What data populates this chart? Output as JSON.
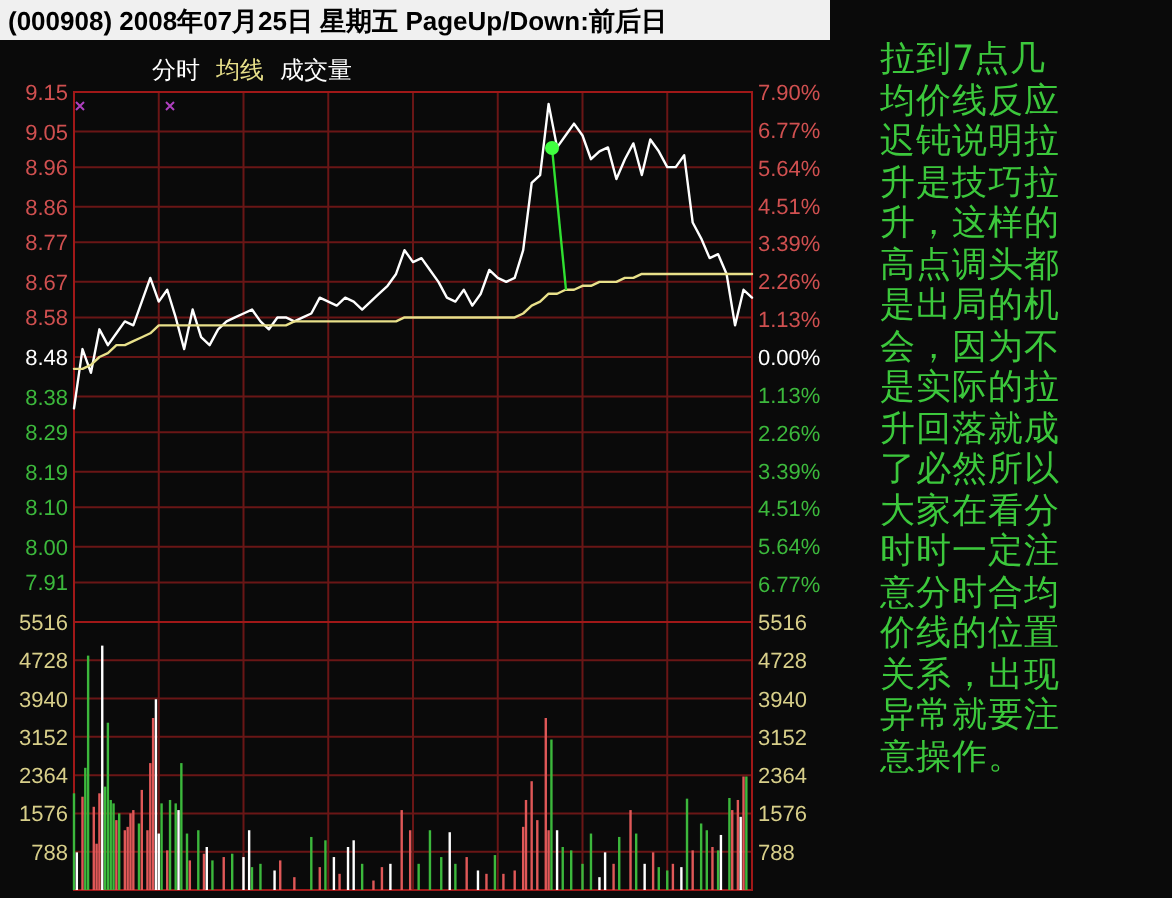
{
  "chart_data": [
    {
      "type": "line",
      "title": "(000908) 2008年07月25日 星期五 PageUp/Down:前后日",
      "tick_labels": "y",
      "categories": [
        null,
        null,
        null,
        null,
        null,
        null,
        null,
        null,
        null,
        null,
        null,
        null,
        null,
        null,
        null,
        null,
        null,
        null,
        null,
        null,
        null,
        null,
        null,
        null,
        null,
        null,
        null,
        null,
        null,
        null,
        null,
        null,
        null,
        null,
        null,
        null,
        null,
        null,
        null,
        null,
        null,
        null,
        null,
        null,
        null,
        null,
        null,
        null,
        null,
        null,
        null,
        null,
        null,
        null,
        null,
        null,
        null,
        null,
        null,
        null,
        null,
        null,
        null,
        null,
        null,
        null,
        null,
        null,
        null,
        null,
        null,
        null,
        null,
        null,
        null,
        null,
        null,
        null,
        null,
        null,
        null
      ],
      "ylim": [
        7.81,
        9.15
      ],
      "yticks": [
        9.15,
        9.05,
        8.96,
        8.86,
        8.77,
        8.67,
        8.58,
        8.48,
        8.38,
        8.29,
        8.19,
        {
          "value": 8.1,
          "label": "8.10"
        },
        {
          "value": 8.0,
          "label": "8.00"
        },
        7.91
      ],
      "y2lim": [
        -7.9,
        7.9
      ],
      "y2ticks": [
        {
          "value": 7.9,
          "label": "7.90%"
        },
        {
          "value": 6.77,
          "label": "6.77%"
        },
        {
          "value": 5.64,
          "label": "5.64%"
        },
        {
          "value": 4.51,
          "label": "4.51%"
        },
        {
          "value": 3.39,
          "label": "3.39%"
        },
        {
          "value": 2.26,
          "label": "2.26%"
        },
        {
          "value": 1.13,
          "label": "1.13%"
        },
        {
          "value": 0,
          "label": "0.00%"
        },
        {
          "value": -1.13,
          "label": "1.13%"
        },
        {
          "value": -2.26,
          "label": "2.26%"
        },
        {
          "value": -3.39,
          "label": "3.39%"
        },
        {
          "value": -4.51,
          "label": "4.51%"
        },
        {
          "value": -5.64,
          "label": "5.64%"
        },
        {
          "value": -6.77,
          "label": "6.77%"
        }
      ],
      "grid": true,
      "annotations": [
        "拉到7点几均价线反应迟钝说明拉升是技巧拉升，这样的高点调头都是出局的机会，因为不是实际的拉升回落就成了必然所以大家在看分时时一定注意分时合均价线的位置关系，出现异常就要注意操作。"
      ],
      "series": [
        {
          "name": "分时",
          "color": "#ffffff",
          "values": [
            8.35,
            8.5,
            8.44,
            8.55,
            8.51,
            8.54,
            8.57,
            8.56,
            8.62,
            8.68,
            8.62,
            8.65,
            8.58,
            8.5,
            8.6,
            8.53,
            8.51,
            8.55,
            8.57,
            8.58,
            8.59,
            8.6,
            8.57,
            8.55,
            8.58,
            8.58,
            8.57,
            8.58,
            8.59,
            8.63,
            8.62,
            8.61,
            8.63,
            8.62,
            8.6,
            8.62,
            8.64,
            8.66,
            8.69,
            8.75,
            8.72,
            8.73,
            8.7,
            8.67,
            8.63,
            8.62,
            8.65,
            8.61,
            8.64,
            8.7,
            8.68,
            8.67,
            8.68,
            8.75,
            8.92,
            8.94,
            9.12,
            9.01,
            9.04,
            9.07,
            9.04,
            8.98,
            9.0,
            9.01,
            8.93,
            8.98,
            9.02,
            8.94,
            9.03,
            9.0,
            8.96,
            8.96,
            8.99,
            8.82,
            8.78,
            8.73,
            8.74,
            8.69,
            8.56,
            8.65,
            8.63
          ]
        },
        {
          "name": "均线",
          "color": "#e8e08a",
          "values": [
            8.45,
            8.45,
            8.46,
            8.48,
            8.49,
            8.51,
            8.51,
            8.52,
            8.53,
            8.54,
            8.56,
            8.56,
            8.56,
            8.56,
            8.56,
            8.56,
            8.56,
            8.56,
            8.56,
            8.56,
            8.56,
            8.56,
            8.56,
            8.56,
            8.56,
            8.56,
            8.57,
            8.57,
            8.57,
            8.57,
            8.57,
            8.57,
            8.57,
            8.57,
            8.57,
            8.57,
            8.57,
            8.57,
            8.57,
            8.58,
            8.58,
            8.58,
            8.58,
            8.58,
            8.58,
            8.58,
            8.58,
            8.58,
            8.58,
            8.58,
            8.58,
            8.58,
            8.58,
            8.59,
            8.61,
            8.62,
            8.64,
            8.64,
            8.65,
            8.65,
            8.66,
            8.66,
            8.67,
            8.67,
            8.67,
            8.68,
            8.68,
            8.69,
            8.69,
            8.69,
            8.69,
            8.69,
            8.69,
            8.69,
            8.69,
            8.69,
            8.69,
            8.69,
            8.69,
            8.69,
            8.69
          ]
        }
      ]
    },
    {
      "type": "bar",
      "tick_labels": "y",
      "categories": [
        null,
        null,
        null,
        null,
        null,
        null,
        null,
        null,
        null,
        null,
        null,
        null,
        null,
        null,
        null,
        null,
        null,
        null,
        null,
        null,
        null,
        null,
        null,
        null,
        null,
        null,
        null,
        null,
        null,
        null,
        null,
        null,
        null,
        null,
        null,
        null,
        null,
        null,
        null,
        null,
        null,
        null,
        null,
        null,
        null,
        null,
        null,
        null,
        null,
        null,
        null,
        null,
        null,
        null,
        null,
        null,
        null,
        null,
        null,
        null,
        null,
        null,
        null,
        null,
        null,
        null,
        null,
        null,
        null,
        null,
        null,
        null,
        null,
        null,
        null,
        null,
        null,
        null,
        null,
        null,
        null,
        null,
        null,
        null,
        null,
        null,
        null,
        null,
        null,
        null,
        null,
        null,
        null,
        null,
        null,
        null,
        null,
        null,
        null,
        null,
        null,
        null,
        null,
        null,
        null,
        null,
        null,
        null,
        null,
        null,
        null,
        null,
        null,
        null,
        null,
        null,
        null,
        null,
        null,
        null,
        null,
        null,
        null,
        null,
        null,
        null,
        null,
        null,
        null,
        null,
        null,
        null,
        null,
        null,
        null,
        null,
        null,
        null,
        null,
        null,
        null,
        null,
        null,
        null,
        null,
        null,
        null,
        null,
        null,
        null,
        null,
        null,
        null,
        null,
        null,
        null,
        null,
        null,
        null,
        null,
        null,
        null,
        null,
        null,
        null,
        null,
        null,
        null,
        null,
        null,
        null,
        null,
        null,
        null,
        null,
        null,
        null,
        null,
        null,
        null,
        null,
        null,
        null,
        null,
        null,
        null,
        null,
        null,
        null,
        null,
        null,
        null,
        null,
        null,
        null,
        null,
        null,
        null,
        null,
        null,
        null,
        null,
        null,
        null,
        null,
        null,
        null,
        null,
        null,
        null,
        null,
        null,
        null,
        null,
        null,
        null,
        null,
        null,
        null,
        null,
        null,
        null,
        null,
        null,
        null,
        null,
        null,
        null,
        null,
        null,
        null,
        null,
        null,
        null,
        null,
        null,
        null,
        null,
        null,
        null,
        null
      ],
      "ylim": [
        0,
        5516
      ],
      "yticks": [
        788,
        1576,
        2364,
        3152,
        3940,
        4728,
        5516
      ],
      "y2lim": [
        0,
        5516
      ],
      "y2ticks": [
        788,
        1576,
        2364,
        3152,
        3940,
        4728,
        5516
      ],
      "grid": true,
      "series": [
        {
          "name": "成交量",
          "values": [
            1990,
            775,
            null,
            1920,
            2515,
            4824,
            null,
            1713,
            953,
            1990,
            5030,
            2128,
            3443,
            1853,
            1783,
            1438,
            1577,
            null,
            1230,
            1300,
            1577,
            1645,
            null,
            1369,
            2060,
            null,
            1230,
            2612,
            3540,
            3926,
            1162,
            1783,
            null,
            816,
            1853,
            null,
            1783,
            1645,
            2612,
            null,
            1162,
            609,
            null,
            null,
            1230,
            null,
            747,
            885,
            null,
            609,
            null,
            null,
            null,
            678,
            null,
            null,
            747,
            null,
            null,
            null,
            678,
            null,
            1230,
            471,
            null,
            null,
            539,
            null,
            null,
            null,
            null,
            402,
            null,
            609,
            null,
            null,
            null,
            null,
            264,
            null,
            null,
            null,
            null,
            null,
            1092,
            null,
            null,
            471,
            null,
            1023,
            null,
            null,
            678,
            null,
            333,
            null,
            null,
            885,
            null,
            1023,
            null,
            null,
            539,
            null,
            null,
            null,
            195,
            null,
            null,
            471,
            null,
            null,
            539,
            null,
            null,
            null,
            1645,
            null,
            null,
            1230,
            null,
            null,
            539,
            null,
            null,
            null,
            1230,
            null,
            null,
            null,
            678,
            null,
            null,
            1189,
            null,
            539,
            null,
            null,
            null,
            678,
            null,
            null,
            null,
            402,
            null,
            null,
            333,
            null,
            null,
            719,
            null,
            null,
            333,
            null,
            null,
            null,
            402,
            null,
            null,
            1300,
            1853,
            null,
            2239,
            null,
            1438,
            null,
            null,
            3540,
            1230,
            3097,
            null,
            1230,
            null,
            885,
            null,
            null,
            816,
            null,
            null,
            null,
            539,
            null,
            null,
            1162,
            null,
            null,
            264,
            null,
            775,
            null,
            null,
            539,
            null,
            1092,
            null,
            null,
            null,
            1645,
            null,
            1162,
            null,
            null,
            539,
            null,
            null,
            775,
            null,
            471,
            null,
            null,
            402,
            null,
            539,
            null,
            null,
            471,
            null,
            1880,
            null,
            816,
            null,
            null,
            1369,
            null,
            1230,
            null,
            885,
            null,
            816,
            1133,
            null,
            null,
            1894,
            1645,
            null,
            1853,
            1506,
            2336,
            2336,
            null,
            null
          ],
          "colors": [
            "#3cb83c",
            "#ffffff",
            null,
            "#e05858",
            "#3cb83c",
            "#3cb83c",
            null,
            "#e05858",
            "#e05858",
            "#e05858",
            "#ffffff",
            "#3cb83c",
            "#3cb83c",
            "#3cb83c",
            "#3cb83c",
            "#e05858",
            "#3cb83c",
            null,
            "#e05858",
            "#e05858",
            "#e05858",
            "#e05858",
            null,
            "#3cb83c",
            "#e05858",
            null,
            "#e05858",
            "#e05858",
            "#e05858",
            "#ffffff",
            "#ffffff",
            "#3cb83c",
            null,
            "#e05858",
            "#3cb83c",
            null,
            "#3cb83c",
            "#ffffff",
            "#3cb83c",
            null,
            "#3cb83c",
            "#e05858",
            null,
            null,
            "#3cb83c",
            null,
            "#e05858",
            "#ffffff",
            null,
            "#3cb83c",
            null,
            null,
            null,
            "#e05858",
            null,
            null,
            "#3cb83c",
            null,
            null,
            null,
            "#ffffff",
            null,
            "#ffffff",
            "#3cb83c",
            null,
            null,
            "#3cb83c",
            null,
            null,
            null,
            null,
            "#ffffff",
            null,
            "#e05858",
            null,
            null,
            null,
            null,
            "#e05858",
            null,
            null,
            null,
            null,
            null,
            "#3cb83c",
            null,
            null,
            "#e05858",
            null,
            "#3cb83c",
            null,
            null,
            "#ffffff",
            null,
            "#e05858",
            null,
            null,
            "#ffffff",
            null,
            "#ffffff",
            null,
            null,
            "#3cb83c",
            null,
            null,
            null,
            "#e05858",
            null,
            null,
            "#e05858",
            null,
            null,
            "#ffffff",
            null,
            null,
            null,
            "#e05858",
            null,
            null,
            "#e05858",
            null,
            null,
            "#3cb83c",
            null,
            null,
            null,
            "#3cb83c",
            null,
            null,
            null,
            "#3cb83c",
            null,
            null,
            "#ffffff",
            null,
            "#3cb83c",
            null,
            null,
            null,
            "#e05858",
            null,
            null,
            null,
            "#ffffff",
            null,
            null,
            "#e05858",
            null,
            null,
            "#3cb83c",
            null,
            null,
            "#e05858",
            null,
            null,
            null,
            "#e05858",
            null,
            null,
            "#e05858",
            "#e05858",
            null,
            "#e05858",
            null,
            "#e05858",
            null,
            null,
            "#e05858",
            "#e05858",
            "#3cb83c",
            null,
            "#ffffff",
            null,
            "#3cb83c",
            null,
            null,
            "#3cb83c",
            null,
            null,
            null,
            "#3cb83c",
            null,
            null,
            "#3cb83c",
            null,
            null,
            "#ffffff",
            null,
            "#ffffff",
            null,
            null,
            "#e05858",
            null,
            "#3cb83c",
            null,
            null,
            null,
            "#e05858",
            null,
            "#3cb83c",
            null,
            null,
            "#ffffff",
            null,
            null,
            "#e05858",
            null,
            "#3cb83c",
            null,
            null,
            "#3cb83c",
            null,
            "#e05858",
            null,
            null,
            "#ffffff",
            null,
            "#3cb83c",
            null,
            "#e05858",
            null,
            null,
            "#3cb83c",
            null,
            "#3cb83c",
            null,
            "#e05858",
            null,
            "#3cb83c",
            "#ffffff",
            null,
            null,
            "#3cb83c",
            "#e05858",
            null,
            "#e05858",
            "#ffffff",
            "#e05858",
            "#3cb83c",
            null,
            null
          ]
        }
      ]
    }
  ]
}
